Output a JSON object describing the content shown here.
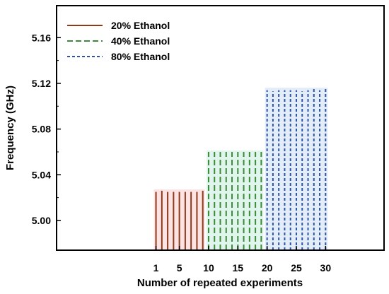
{
  "chart_data": {
    "type": "bar",
    "title": "",
    "xlabel": "Number of repeated experiments",
    "ylabel": "Frequency (GHz)",
    "xlim": [
      -16,
      40
    ],
    "ylim": [
      4.974,
      5.188
    ],
    "x_ticks": [
      1,
      5,
      10,
      15,
      20,
      25,
      30
    ],
    "y_ticks": [
      5.0,
      5.04,
      5.08,
      5.12,
      5.16
    ],
    "y_tick_labels": [
      "5.00",
      "5.04",
      "5.08",
      "5.12",
      "5.16"
    ],
    "legend_position": "top-left",
    "series": [
      {
        "name": "20% Ethanol",
        "color": "#8b3a1a",
        "dash": "solid",
        "x": [
          1,
          2,
          3,
          4,
          5,
          6,
          7,
          8,
          9
        ],
        "values": [
          5.025,
          5.026,
          5.025,
          5.025,
          5.025,
          5.025,
          5.025,
          5.025,
          5.026
        ]
      },
      {
        "name": "40% Ethanol",
        "color": "#3d8a3d",
        "dash": "long-dash",
        "x": [
          10,
          11,
          12,
          13,
          14,
          15,
          16,
          17,
          18,
          19
        ],
        "values": [
          5.06,
          5.06,
          5.06,
          5.06,
          5.06,
          5.06,
          5.06,
          5.06,
          5.06,
          5.06
        ]
      },
      {
        "name": "80% Ethanol",
        "color": "#2f52a8",
        "dash": "short-dash",
        "x": [
          20,
          21,
          22,
          23,
          24,
          25,
          26,
          27,
          28,
          29,
          30
        ],
        "values": [
          5.114,
          5.113,
          5.114,
          5.114,
          5.114,
          5.114,
          5.113,
          5.114,
          5.115,
          5.114,
          5.115
        ]
      }
    ]
  }
}
